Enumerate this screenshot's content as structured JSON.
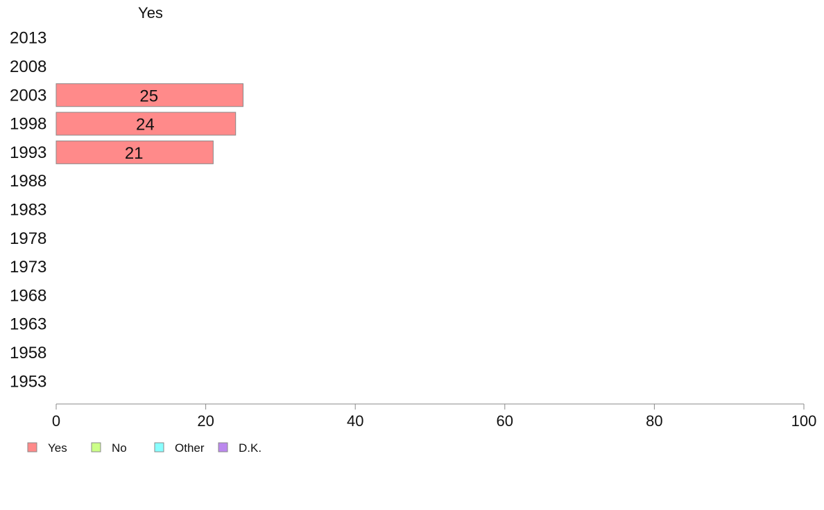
{
  "chart_data": {
    "type": "bar",
    "orientation": "horizontal",
    "stacked": true,
    "column_header": "Yes",
    "categories": [
      "2013",
      "2008",
      "2003",
      "1998",
      "1993",
      "1988",
      "1983",
      "1978",
      "1973",
      "1968",
      "1963",
      "1958",
      "1953"
    ],
    "series": [
      {
        "name": "Yes",
        "color": "#ff8a8a",
        "values": [
          null,
          null,
          25,
          24,
          21,
          null,
          null,
          null,
          null,
          null,
          null,
          null,
          null
        ],
        "labels": [
          "",
          "",
          "25",
          "24",
          "21",
          "",
          "",
          "",
          "",
          "",
          "",
          "",
          ""
        ]
      },
      {
        "name": "No",
        "color": "#ccff88",
        "values": [
          null,
          null,
          null,
          null,
          null,
          null,
          null,
          null,
          null,
          null,
          null,
          null,
          null
        ]
      },
      {
        "name": "Other",
        "color": "#88ffff",
        "values": [
          null,
          null,
          null,
          null,
          null,
          null,
          null,
          null,
          null,
          null,
          null,
          null,
          null
        ]
      },
      {
        "name": "D.K.",
        "color": "#bb88ee",
        "values": [
          null,
          null,
          null,
          null,
          null,
          null,
          null,
          null,
          null,
          null,
          null,
          null,
          null
        ]
      }
    ],
    "xlim": [
      0,
      100
    ],
    "xticks": [
      "0",
      "20",
      "40",
      "60",
      "80",
      "100"
    ],
    "grid": false,
    "legend_position": "bottom-left"
  }
}
